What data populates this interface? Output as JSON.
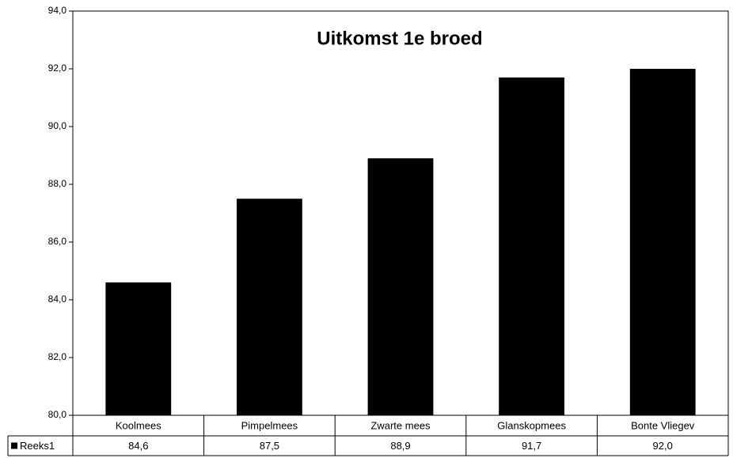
{
  "chart_data": {
    "type": "bar",
    "title": "Uitkomst 1e broed",
    "categories": [
      "Koolmees",
      "Pimpelmees",
      "Zwarte mees",
      "Glanskopmees",
      "Bonte Vliegev"
    ],
    "series": [
      {
        "name": "Reeks1",
        "color": "#000000",
        "values": [
          84.6,
          87.5,
          88.9,
          91.7,
          92.0
        ],
        "value_labels": [
          "84,6",
          "87,5",
          "88,9",
          "91,7",
          "92,0"
        ]
      }
    ],
    "ylim": [
      80,
      94
    ],
    "yticks": [
      {
        "value": 80,
        "label": "80,0"
      },
      {
        "value": 82,
        "label": "82,0"
      },
      {
        "value": 84,
        "label": "84,0"
      },
      {
        "value": 86,
        "label": "86,0"
      },
      {
        "value": 88,
        "label": "88,0"
      },
      {
        "value": 90,
        "label": "90,0"
      },
      {
        "value": 92,
        "label": "92,0"
      },
      {
        "value": 94,
        "label": "94,0"
      }
    ],
    "grid": false
  }
}
